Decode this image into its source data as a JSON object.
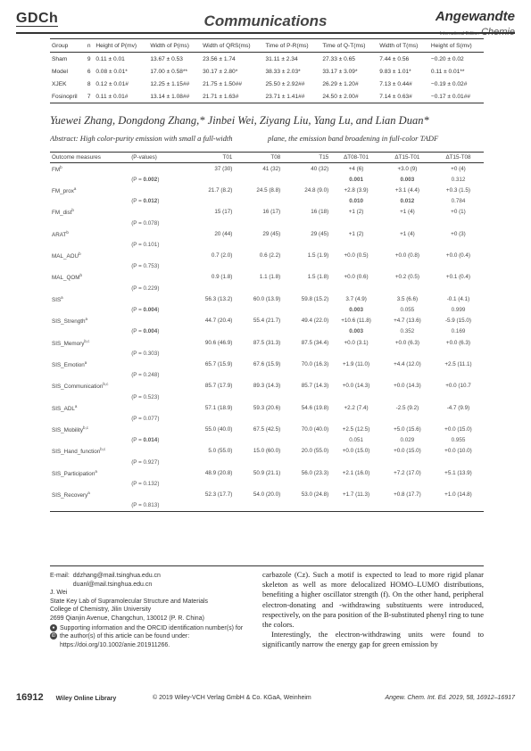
{
  "header": {
    "logo": "GDCh",
    "title": "Communications",
    "brand_main": "Angewandte",
    "brand_sub": "International Edition",
    "brand_chemie": "Chemie"
  },
  "table1": {
    "headers": [
      "Group",
      "n",
      "Height of P(mv)",
      "Width of P(ms)",
      "Width of QRS(ms)",
      "Time of P-R(ms)",
      "Time of Q-T(ms)",
      "Width of T(ms)",
      "Height of S(mv)"
    ],
    "rows": [
      [
        "Sham",
        "9",
        "0.11 ± 0.01",
        "13.67 ± 0.53",
        "23.56 ± 1.74",
        "31.11 ± 2.34",
        "27.33 ± 0.65",
        "7.44 ± 0.56",
        "−0.20 ± 0.02"
      ],
      [
        "Model",
        "6",
        "0.08 ± 0.01*",
        "17.00 ± 0.58**",
        "30.17 ± 2.80*",
        "38.33 ± 2.03*",
        "33.17 ± 3.09*",
        "9.83 ± 1.01*",
        "0.11 ± 0.01**"
      ],
      [
        "XJEK",
        "8",
        "0.12 ± 0.01#",
        "12.25 ± 1.15##",
        "21.75 ± 1.50##",
        "25.50 ± 2.92##",
        "26.29 ± 1.20#",
        "7.13 ± 0.44#",
        "−0.19 ± 0.02#"
      ],
      [
        "Fosinopril",
        "7",
        "0.11 ± 0.01#",
        "13.14 ± 1.08##",
        "21.71 ± 1.63#",
        "23.71 ± 1.41##",
        "24.50 ± 2.00#",
        "7.14 ± 0.63#",
        "−0.17 ± 0.01##"
      ]
    ]
  },
  "authors": "Yuewei Zhang, Dongdong Zhang,* Jinbei Wei, Ziyang Liu, Yang Lu, and Lian Duan*",
  "abstract": {
    "col1": "Abstract: High color-purity emission with small a full-width",
    "col2": "plane, the emission band broadening in full-color TADF"
  },
  "table2": {
    "headers": [
      "Outcome measures",
      "(P-values)",
      "T01",
      "T08",
      "T15",
      "ΔT08-T01",
      "ΔT15-T01",
      "ΔT15-T08"
    ],
    "rows": [
      {
        "name": "FM",
        "sup": "b",
        "t01": "37 (30)",
        "t08": "41 (32)",
        "t15": "40 (32)",
        "d1": "+4 (6)",
        "d2": "+3.0 (9)",
        "d3": "+0 (4)",
        "p": "0.002",
        "pbold": true,
        "p1": "0.001",
        "p2": "0.003",
        "p3": "0.312",
        "b1": true,
        "b2": true,
        "b3": false
      },
      {
        "name": "FM_prox",
        "sup": "a",
        "t01": "21.7 (8.2)",
        "t08": "24.5 (8.8)",
        "t15": "24.8 (9.0)",
        "d1": "+2.8 (3.9)",
        "d2": "+3.1 (4.4)",
        "d3": "+0.3 (1.5)",
        "p": "0.012",
        "pbold": true,
        "p1": "0.010",
        "p2": "0.012",
        "p3": "0.784",
        "b1": true,
        "b2": true,
        "b3": false
      },
      {
        "name": "FM_dist",
        "sup": "b",
        "t01": "15 (17)",
        "t08": "16 (17)",
        "t15": "16 (18)",
        "d1": "+1 (2)",
        "d2": "+1 (4)",
        "d3": "+0 (1)",
        "p": "0.078",
        "pbold": false,
        "p1": "",
        "p2": "",
        "p3": ""
      },
      {
        "name": "ARAT",
        "sup": "b",
        "t01": "20 (44)",
        "t08": "29 (45)",
        "t15": "29 (45)",
        "d1": "+1 (2)",
        "d2": "+1 (4)",
        "d3": "+0 (3)",
        "p": "0.101",
        "pbold": false,
        "p1": "",
        "p2": "",
        "p3": ""
      },
      {
        "name": "MAL_AOU",
        "sup": "b",
        "t01": "0.7 (2.0)",
        "t08": "0.6 (2.2)",
        "t15": "1.5 (1.9)",
        "d1": "+0.0 (0.5)",
        "d2": "+0.0 (0.8)",
        "d3": "+0.0 (0.4)",
        "p": "0.753",
        "pbold": false,
        "p1": "",
        "p2": "",
        "p3": ""
      },
      {
        "name": "MAL_QOM",
        "sup": "b",
        "t01": "0.9 (1.8)",
        "t08": "1.1 (1.8)",
        "t15": "1.5 (1.8)",
        "d1": "+0.0 (0.6)",
        "d2": "+0.2 (0.5)",
        "d3": "+0.1 (0.4)",
        "p": "0.229",
        "pbold": false,
        "p1": "",
        "p2": "",
        "p3": ""
      },
      {
        "name": "SIS",
        "sup": "a",
        "t01": "56.3 (13.2)",
        "t08": "60.0 (13.9)",
        "t15": "59.8 (15.2)",
        "d1": "3.7 (4.9)",
        "d2": "3.5 (6.6)",
        "d3": "-0.1 (4.1)",
        "p": "0.004",
        "pbold": true,
        "p1": "0.003",
        "p2": "0.055",
        "p3": "0.999",
        "b1": true,
        "b2": false,
        "b3": false
      },
      {
        "name": "SIS_Strength",
        "sup": "a",
        "t01": "44.7 (20.4)",
        "t08": "55.4 (21.7)",
        "t15": "49.4 (22.0)",
        "d1": "+10.6 (11.8)",
        "d2": "+4.7 (13.6)",
        "d3": "-5.9 (15.0)",
        "p": "0.004",
        "pbold": true,
        "p1": "0.003",
        "p2": "0.352",
        "p3": "0.169",
        "b1": true,
        "b2": false,
        "b3": false
      },
      {
        "name": "SIS_Memory",
        "sup": "b,c",
        "t01": "90.6 (46.9)",
        "t08": "87.5 (31.3)",
        "t15": "87.5 (34.4)",
        "d1": "+0.0 (3.1)",
        "d2": "+0.0 (6.3)",
        "d3": "+0.0 (6.3)",
        "p": "0.303",
        "pbold": false,
        "p1": "",
        "p2": "",
        "p3": ""
      },
      {
        "name": "SIS_Emotion",
        "sup": "a",
        "t01": "65.7 (15.9)",
        "t08": "67.6 (15.9)",
        "t15": "70.0 (16.3)",
        "d1": "+1.9 (11.0)",
        "d2": "+4.4 (12.0)",
        "d3": "+2.5 (11.1)",
        "p": "0.248",
        "pbold": false,
        "p1": "",
        "p2": "",
        "p3": ""
      },
      {
        "name": "SIS_Communication",
        "sup": "b,c",
        "t01": "85.7 (17.9)",
        "t08": "89.3 (14.3)",
        "t15": "85.7 (14.3)",
        "d1": "+0.0 (14.3)",
        "d2": "+0.0 (14.3)",
        "d3": "+0.0 (10.7",
        "p": "0.523",
        "pbold": false,
        "p1": "",
        "p2": "",
        "p3": ""
      },
      {
        "name": "SIS_ADL",
        "sup": "a",
        "t01": "57.1 (18.9)",
        "t08": "59.3 (20.6)",
        "t15": "54.6 (19.8)",
        "d1": "+2.2 (7.4)",
        "d2": "-2.5 (9.2)",
        "d3": "-4.7 (9.9)",
        "p": "0.077",
        "pbold": false,
        "p1": "",
        "p2": "",
        "p3": ""
      },
      {
        "name": "SIS_Mobility",
        "sup": "b,c",
        "t01": "55.0 (40.0)",
        "t08": "67.5 (42.5)",
        "t15": "70.0 (40.0)",
        "d1": "+2.5 (12.5)",
        "d2": "+5.0 (15.6)",
        "d3": "+0.0 (15.0)",
        "p": "0.014",
        "pbold": true,
        "p1": "0.051",
        "p2": "0.029",
        "p3": "0.955",
        "b1": false,
        "b2": false,
        "b3": false
      },
      {
        "name": "SIS_Hand_function",
        "sup": "b,c",
        "t01": "5.0 (55.0)",
        "t08": "15.0 (60.0)",
        "t15": "20.0 (55.0)",
        "d1": "+0.0 (15.0)",
        "d2": "+0.0 (15.0)",
        "d3": "+0.0 (10.0)",
        "p": "0.927",
        "pbold": false,
        "p1": "",
        "p2": "",
        "p3": ""
      },
      {
        "name": "SIS_Participation",
        "sup": "a",
        "t01": "48.9 (20.8)",
        "t08": "50.9 (21.1)",
        "t15": "56.0 (23.3)",
        "d1": "+2.1 (16.0)",
        "d2": "+7.2 (17.0)",
        "d3": "+5.1 (13.9)",
        "p": "0.132",
        "pbold": false,
        "p1": "",
        "p2": "",
        "p3": ""
      },
      {
        "name": "SIS_Recovery",
        "sup": "a",
        "t01": "52.3 (17.7)",
        "t08": "54.0 (20.0)",
        "t15": "53.0 (24.8)",
        "d1": "+1.7 (11.3)",
        "d2": "+0.8 (17.7)",
        "d3": "+1.0 (14.8)",
        "p": "0.813",
        "pbold": false,
        "p1": "",
        "p2": "",
        "p3": ""
      }
    ]
  },
  "contacts": {
    "email_label": "E-mail:",
    "email1": "ddzhang@mail.tsinghua.edu.cn",
    "email2": "duanl@mail.tsinghua.edu.cn",
    "name": "J. Wei",
    "lab": "State Key Lab of Supramolecular Structure and Materials",
    "college": "College of Chemistry, Jilin University",
    "address": "2699 Qianjin Avenue, Changchun, 130012 (P. R. China)",
    "si_text": "Supporting information and the ORCID identification number(s) for the author(s) of this article can be found under:",
    "doi": "https://doi.org/10.1002/anie.201911266."
  },
  "body_text": {
    "p1": "carbazole (Cz). Such a motif is expected to lead to more rigid planar skeleton as well as more delocalized HOMO–LUMO distributions, benefiting a higher oscillator strength (f). On the other hand, peripheral electron-donating and -withdrawing substituents were introduced, respectively, on the para position of the B-substituted phenyl ring to tune the colors.",
    "p2": "Interestingly, the electron-withdrawing units were found to significantly narrow the energy gap for green emission by"
  },
  "footer": {
    "page": "16912",
    "library": "Wiley Online Library",
    "copyright": "© 2019 Wiley-VCH Verlag GmbH & Co. KGaA, Weinheim",
    "citation": "Angew. Chem. Int. Ed. 2019, 58, 16912–16917"
  }
}
